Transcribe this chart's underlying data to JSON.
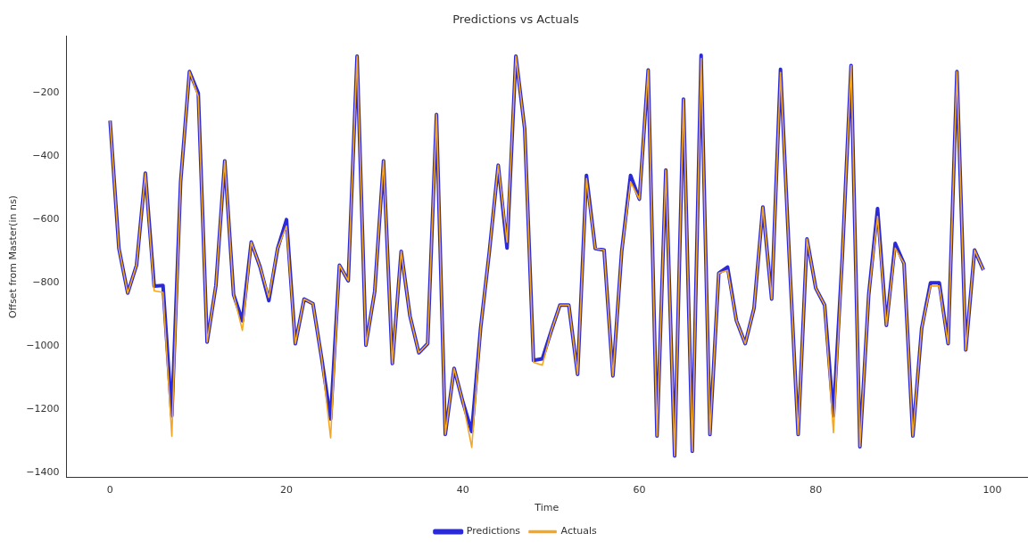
{
  "chart_data": {
    "type": "line",
    "title": "Predictions vs Actuals",
    "xlabel": "Time",
    "ylabel": "Offset from Master(in ns)",
    "x": [
      0,
      1,
      2,
      3,
      4,
      5,
      6,
      7,
      8,
      9,
      10,
      11,
      12,
      13,
      14,
      15,
      16,
      17,
      18,
      19,
      20,
      21,
      22,
      23,
      24,
      25,
      26,
      27,
      28,
      29,
      30,
      31,
      32,
      33,
      34,
      35,
      36,
      37,
      38,
      39,
      40,
      41,
      42,
      43,
      44,
      45,
      46,
      47,
      48,
      49,
      50,
      51,
      52,
      53,
      54,
      55,
      56,
      57,
      58,
      59,
      60,
      61,
      62,
      63,
      64,
      65,
      66,
      67,
      68,
      69,
      70,
      71,
      72,
      73,
      74,
      75,
      76,
      77,
      78,
      79,
      80,
      81,
      82,
      83,
      84,
      85,
      86,
      87,
      88,
      89,
      90,
      91,
      92,
      93,
      94,
      95,
      96,
      97,
      98,
      99
    ],
    "series": [
      {
        "name": "Predictions",
        "color": "#2a2ad8",
        "values": [
          -287,
          -691,
          -832,
          -744,
          -453,
          -810,
          -808,
          -1220,
          -480,
          -132,
          -200,
          -987,
          -808,
          -414,
          -837,
          -920,
          -671,
          -749,
          -856,
          -691,
          -600,
          -992,
          -851,
          -866,
          -1041,
          -1230,
          -744,
          -793,
          -83,
          -997,
          -827,
          -414,
          -1055,
          -700,
          -905,
          -1021,
          -992,
          -268,
          -1279,
          -1070,
          -1177,
          -1270,
          -944,
          -700,
          -428,
          -690,
          -83,
          -312,
          -1045,
          -1040,
          -953,
          -870,
          -870,
          -1089,
          -460,
          -691,
          -696,
          -1094,
          -700,
          -460,
          -535,
          -127,
          -1284,
          -443,
          -1347,
          -219,
          -1332,
          -80,
          -1279,
          -769,
          -750,
          -919,
          -992,
          -880,
          -560,
          -851,
          -125,
          -720,
          -1279,
          -661,
          -817,
          -870,
          -1220,
          -720,
          -113,
          -1318,
          -837,
          -565,
          -934,
          -675,
          -739,
          -1284,
          -944,
          -800,
          -800,
          -992,
          -132,
          -1012,
          -696,
          -759
        ]
      },
      {
        "name": "Actuals",
        "color": "#f5a623",
        "values": [
          -287,
          -691,
          -832,
          -744,
          -453,
          -825,
          -830,
          -1285,
          -480,
          -132,
          -210,
          -987,
          -808,
          -414,
          -837,
          -950,
          -671,
          -749,
          -846,
          -691,
          -620,
          -992,
          -851,
          -866,
          -1041,
          -1290,
          -744,
          -793,
          -83,
          -997,
          -827,
          -414,
          -1055,
          -700,
          -905,
          -1021,
          -992,
          -268,
          -1279,
          -1070,
          -1177,
          -1320,
          -944,
          -700,
          -428,
          -671,
          -83,
          -312,
          -1051,
          -1060,
          -953,
          -870,
          -870,
          -1089,
          -470,
          -691,
          -696,
          -1094,
          -700,
          -480,
          -535,
          -127,
          -1284,
          -443,
          -1347,
          -219,
          -1332,
          -90,
          -1279,
          -769,
          -760,
          -919,
          -992,
          -880,
          -560,
          -851,
          -135,
          -720,
          -1279,
          -661,
          -817,
          -870,
          -1274,
          -720,
          -113,
          -1318,
          -837,
          -590,
          -934,
          -690,
          -739,
          -1284,
          -944,
          -810,
          -810,
          -992,
          -132,
          -1012,
          -696,
          -759
        ]
      }
    ],
    "xlim": [
      -4.95,
      103.95
    ],
    "ylim": [
      -1415,
      -20
    ],
    "xticks": [
      0,
      20,
      40,
      60,
      80,
      100
    ],
    "yticks": [
      -1400,
      -1200,
      -1000,
      -800,
      -600,
      -400,
      -200
    ],
    "legend": "bottom",
    "grid": false,
    "marker": "none",
    "line_style": "solid"
  }
}
